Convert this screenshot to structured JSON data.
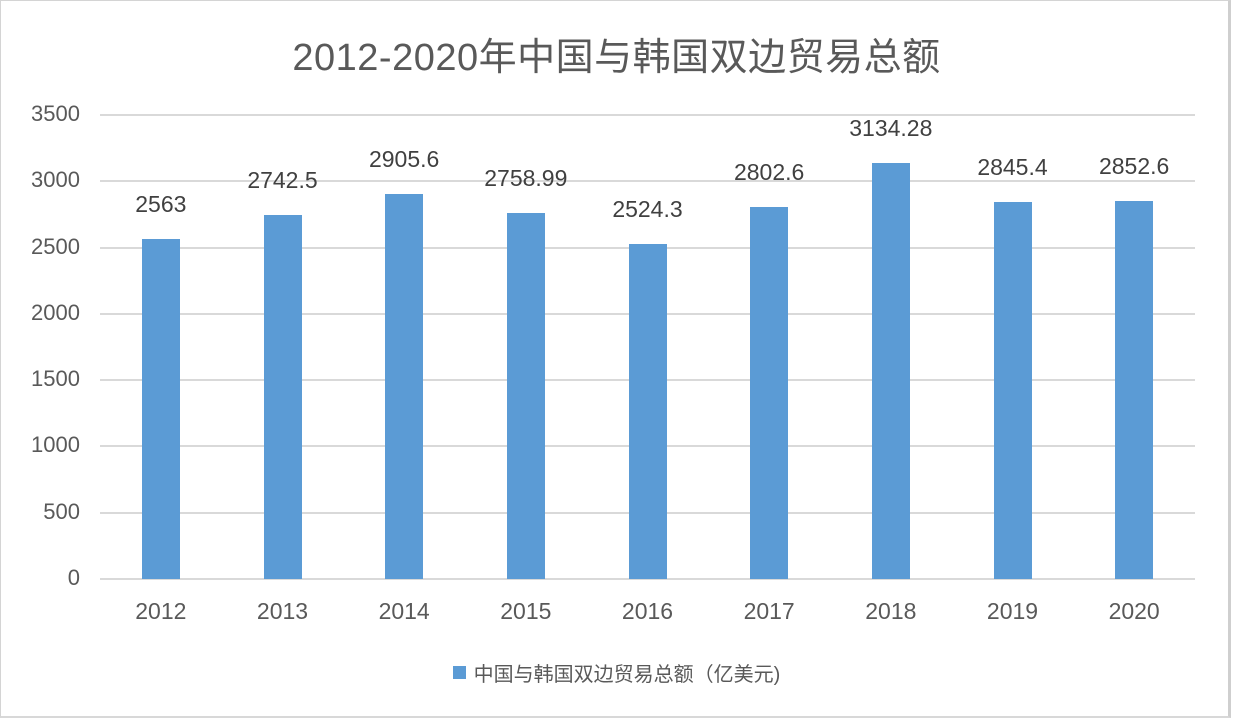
{
  "chart_data": {
    "type": "bar",
    "title": "2012-2020年中国与韩国双边贸易总额",
    "categories": [
      "2012",
      "2013",
      "2014",
      "2015",
      "2016",
      "2017",
      "2018",
      "2019",
      "2020"
    ],
    "series": [
      {
        "name": "中国与韩国双边贸易总额（亿美元)",
        "color": "#5b9bd5",
        "values": [
          2563,
          2742.5,
          2905.6,
          2758.99,
          2524.3,
          2802.6,
          3134.28,
          2845.4,
          2852.6
        ]
      }
    ],
    "data_labels": [
      "2563",
      "2742.5",
      "2905.6",
      "2758.99",
      "2524.3",
      "2802.6",
      "3134.28",
      "2845.4",
      "2852.6"
    ],
    "xlabel": "",
    "ylabel": "",
    "ylim": [
      0,
      3500
    ],
    "yticks": [
      "0",
      "500",
      "1000",
      "1500",
      "2000",
      "2500",
      "3000",
      "3500"
    ],
    "grid": true,
    "legend_position": "bottom"
  }
}
